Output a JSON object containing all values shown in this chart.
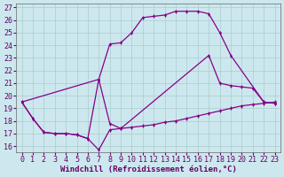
{
  "title": "",
  "xlabel": "Windchill (Refroidissement éolien,°C)",
  "bg_color": "#cce8ee",
  "line_color": "#880088",
  "grid_color": "#aacccc",
  "xlim": [
    -0.5,
    23.5
  ],
  "ylim": [
    15.5,
    27.3
  ],
  "xticks": [
    0,
    1,
    2,
    3,
    4,
    5,
    6,
    7,
    8,
    9,
    10,
    11,
    12,
    13,
    14,
    15,
    16,
    17,
    18,
    19,
    20,
    21,
    22,
    23
  ],
  "yticks": [
    16,
    17,
    18,
    19,
    20,
    21,
    22,
    23,
    24,
    25,
    26,
    27
  ],
  "curve_upper_x": [
    0,
    7,
    8,
    9,
    10,
    11,
    12,
    13,
    14,
    15,
    16,
    17,
    18,
    19,
    22,
    23
  ],
  "curve_upper_y": [
    19.5,
    21.3,
    24.1,
    24.2,
    25.0,
    26.2,
    26.3,
    26.4,
    26.7,
    26.7,
    26.7,
    26.5,
    25.0,
    23.2,
    19.5,
    19.4
  ],
  "curve_lower_x": [
    0,
    1,
    2,
    3,
    4,
    5,
    6,
    7,
    8,
    9,
    10,
    11,
    12,
    13,
    14,
    15,
    16,
    17,
    18,
    19,
    20,
    21,
    22,
    23
  ],
  "curve_lower_y": [
    19.5,
    18.2,
    17.1,
    17.0,
    17.0,
    16.9,
    16.6,
    15.7,
    17.3,
    17.4,
    17.5,
    17.6,
    17.7,
    17.9,
    18.0,
    18.2,
    18.4,
    18.6,
    18.8,
    19.0,
    19.2,
    19.3,
    19.4,
    19.5
  ],
  "curve_mid_x": [
    0,
    1,
    2,
    3,
    4,
    5,
    6,
    7,
    8,
    9,
    17,
    18,
    19,
    20,
    21,
    22,
    23
  ],
  "curve_mid_y": [
    19.5,
    18.2,
    17.1,
    17.0,
    17.0,
    16.9,
    16.6,
    21.3,
    17.8,
    17.4,
    23.2,
    21.0,
    20.8,
    20.7,
    20.6,
    19.5,
    19.4
  ],
  "fontsize_tick": 6,
  "fontsize_label": 6.5
}
